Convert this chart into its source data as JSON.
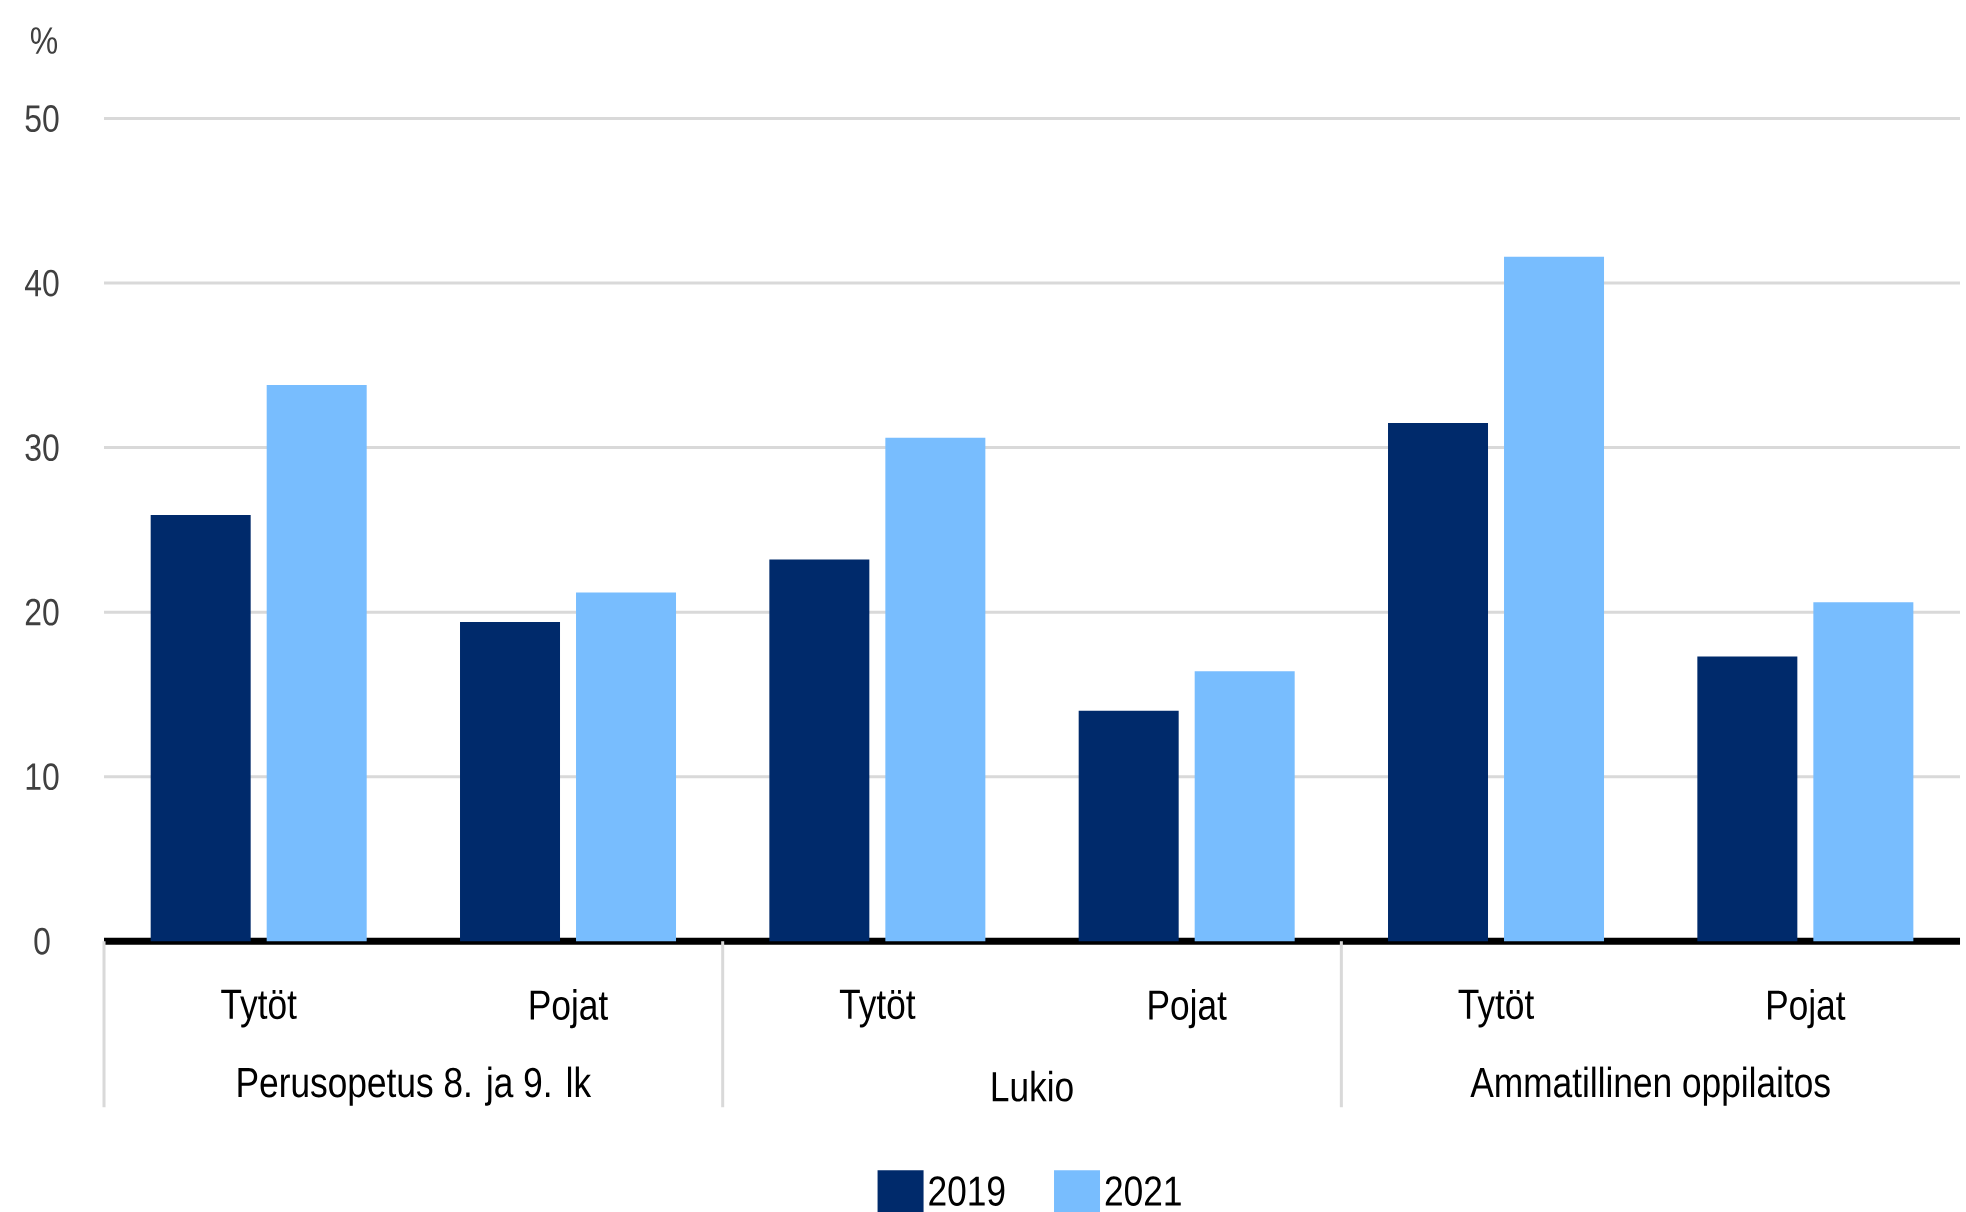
{
  "chart_data": {
    "type": "bar",
    "ylabel": "%",
    "categories": [
      "Tytöt",
      "Pojat",
      "Tytöt",
      "Pojat",
      "Tytöt",
      "Pojat"
    ],
    "annotations": [
      "Perusopetus 8. ja 9. lk",
      "Lukio",
      "Ammatillinen oppilaitos"
    ],
    "series": [
      {
        "name": "2019",
        "color": "#002a6b",
        "values": [
          25.9,
          19.4,
          23.2,
          14.0,
          31.5,
          17.3
        ]
      },
      {
        "name": "2021",
        "color": "#78bdfe",
        "values": [
          33.8,
          21.2,
          30.6,
          16.4,
          41.6,
          20.6
        ]
      }
    ],
    "ylim": [
      0,
      50
    ],
    "yticks": [
      0,
      10,
      20,
      30,
      40,
      50
    ],
    "grid": "y",
    "legend": "bottom"
  }
}
